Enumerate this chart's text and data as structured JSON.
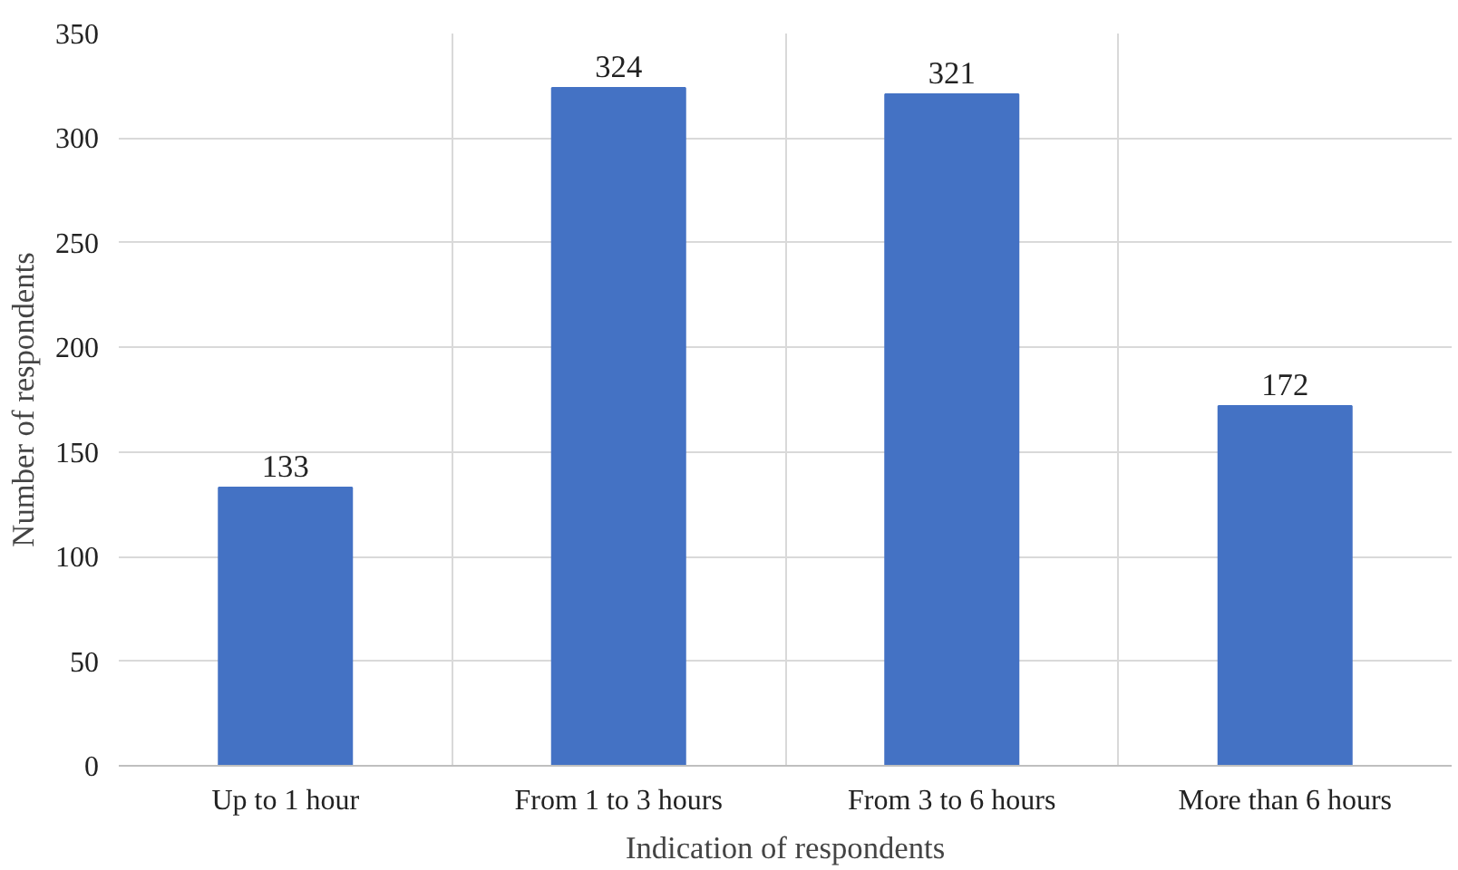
{
  "chart_data": {
    "type": "bar",
    "xlabel": "Indication of respondents",
    "ylabel": "Number of respondents",
    "categories": [
      "Up to 1 hour",
      "From 1 to 3 hours",
      "From 3 to 6 hours",
      "More than 6 hours"
    ],
    "values": [
      133,
      324,
      321,
      172
    ],
    "color": "#4472c4",
    "ylim": [
      0,
      350
    ],
    "yticks": [
      0,
      50,
      100,
      150,
      200,
      250,
      300,
      350
    ],
    "grid": true,
    "data_labels": true
  }
}
